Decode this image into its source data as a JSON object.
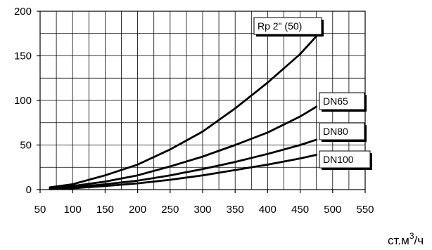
{
  "chart_data": {
    "type": "line",
    "title": "",
    "xlabel": "ст.м",
    "xlabel_sup": "3",
    "xlabel_tail": "/ч",
    "ylabel": "",
    "xlim": [
      50,
      550
    ],
    "ylim": [
      0,
      200
    ],
    "x_ticks": [
      50,
      100,
      150,
      200,
      250,
      300,
      350,
      400,
      450,
      500,
      550
    ],
    "y_ticks": [
      0,
      50,
      100,
      150,
      200
    ],
    "x_gridlines": [
      50,
      75,
      100,
      125,
      150,
      175,
      200,
      225,
      250,
      275,
      300,
      325,
      350,
      375,
      400,
      425,
      450,
      475,
      500,
      525,
      550
    ],
    "y_gridlines": [
      0,
      25,
      50,
      75,
      100,
      125,
      150,
      175,
      200
    ],
    "grid": true,
    "legend": "labels boxed at the end of each line",
    "series": [
      {
        "name": "Rp 2\" (50)",
        "x": [
          65,
          100,
          150,
          200,
          250,
          300,
          350,
          400,
          450,
          475
        ],
        "y": [
          2.5,
          6,
          16,
          28,
          45,
          65,
          91,
          120,
          152,
          172
        ]
      },
      {
        "name": "DN65",
        "x": [
          65,
          100,
          150,
          200,
          250,
          300,
          350,
          400,
          450,
          475
        ],
        "y": [
          1.5,
          4,
          9,
          16,
          26,
          37,
          50,
          64,
          82,
          93
        ]
      },
      {
        "name": "DN80",
        "x": [
          65,
          100,
          150,
          200,
          250,
          300,
          350,
          400,
          450,
          475
        ],
        "y": [
          1,
          2.5,
          6,
          10,
          16,
          23,
          31,
          40,
          50,
          56
        ]
      },
      {
        "name": "DN100",
        "x": [
          65,
          100,
          150,
          200,
          250,
          300,
          350,
          400,
          450,
          475
        ],
        "y": [
          0.5,
          1.5,
          4,
          7,
          11,
          16,
          22,
          28,
          35,
          39
        ]
      }
    ]
  }
}
